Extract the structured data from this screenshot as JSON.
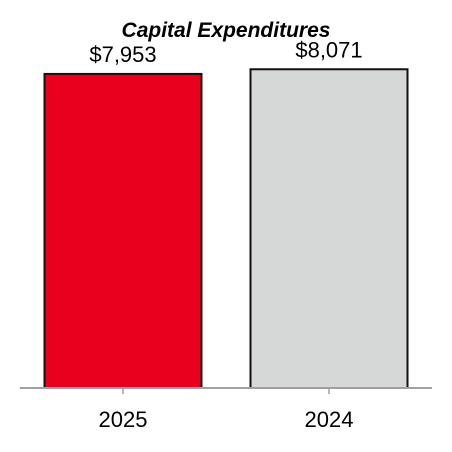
{
  "chart_data": {
    "type": "bar",
    "title": "Capital Expenditures",
    "categories": [
      "2025",
      "2024"
    ],
    "values": [
      7953,
      8071
    ],
    "data_labels": [
      "$7,953",
      "$8,071"
    ],
    "colors": [
      "#e8001e",
      "#d6d8d8"
    ],
    "xlabel": "",
    "ylabel": "",
    "ylim": [
      0,
      9825
    ],
    "grid": false,
    "legend": "none"
  }
}
